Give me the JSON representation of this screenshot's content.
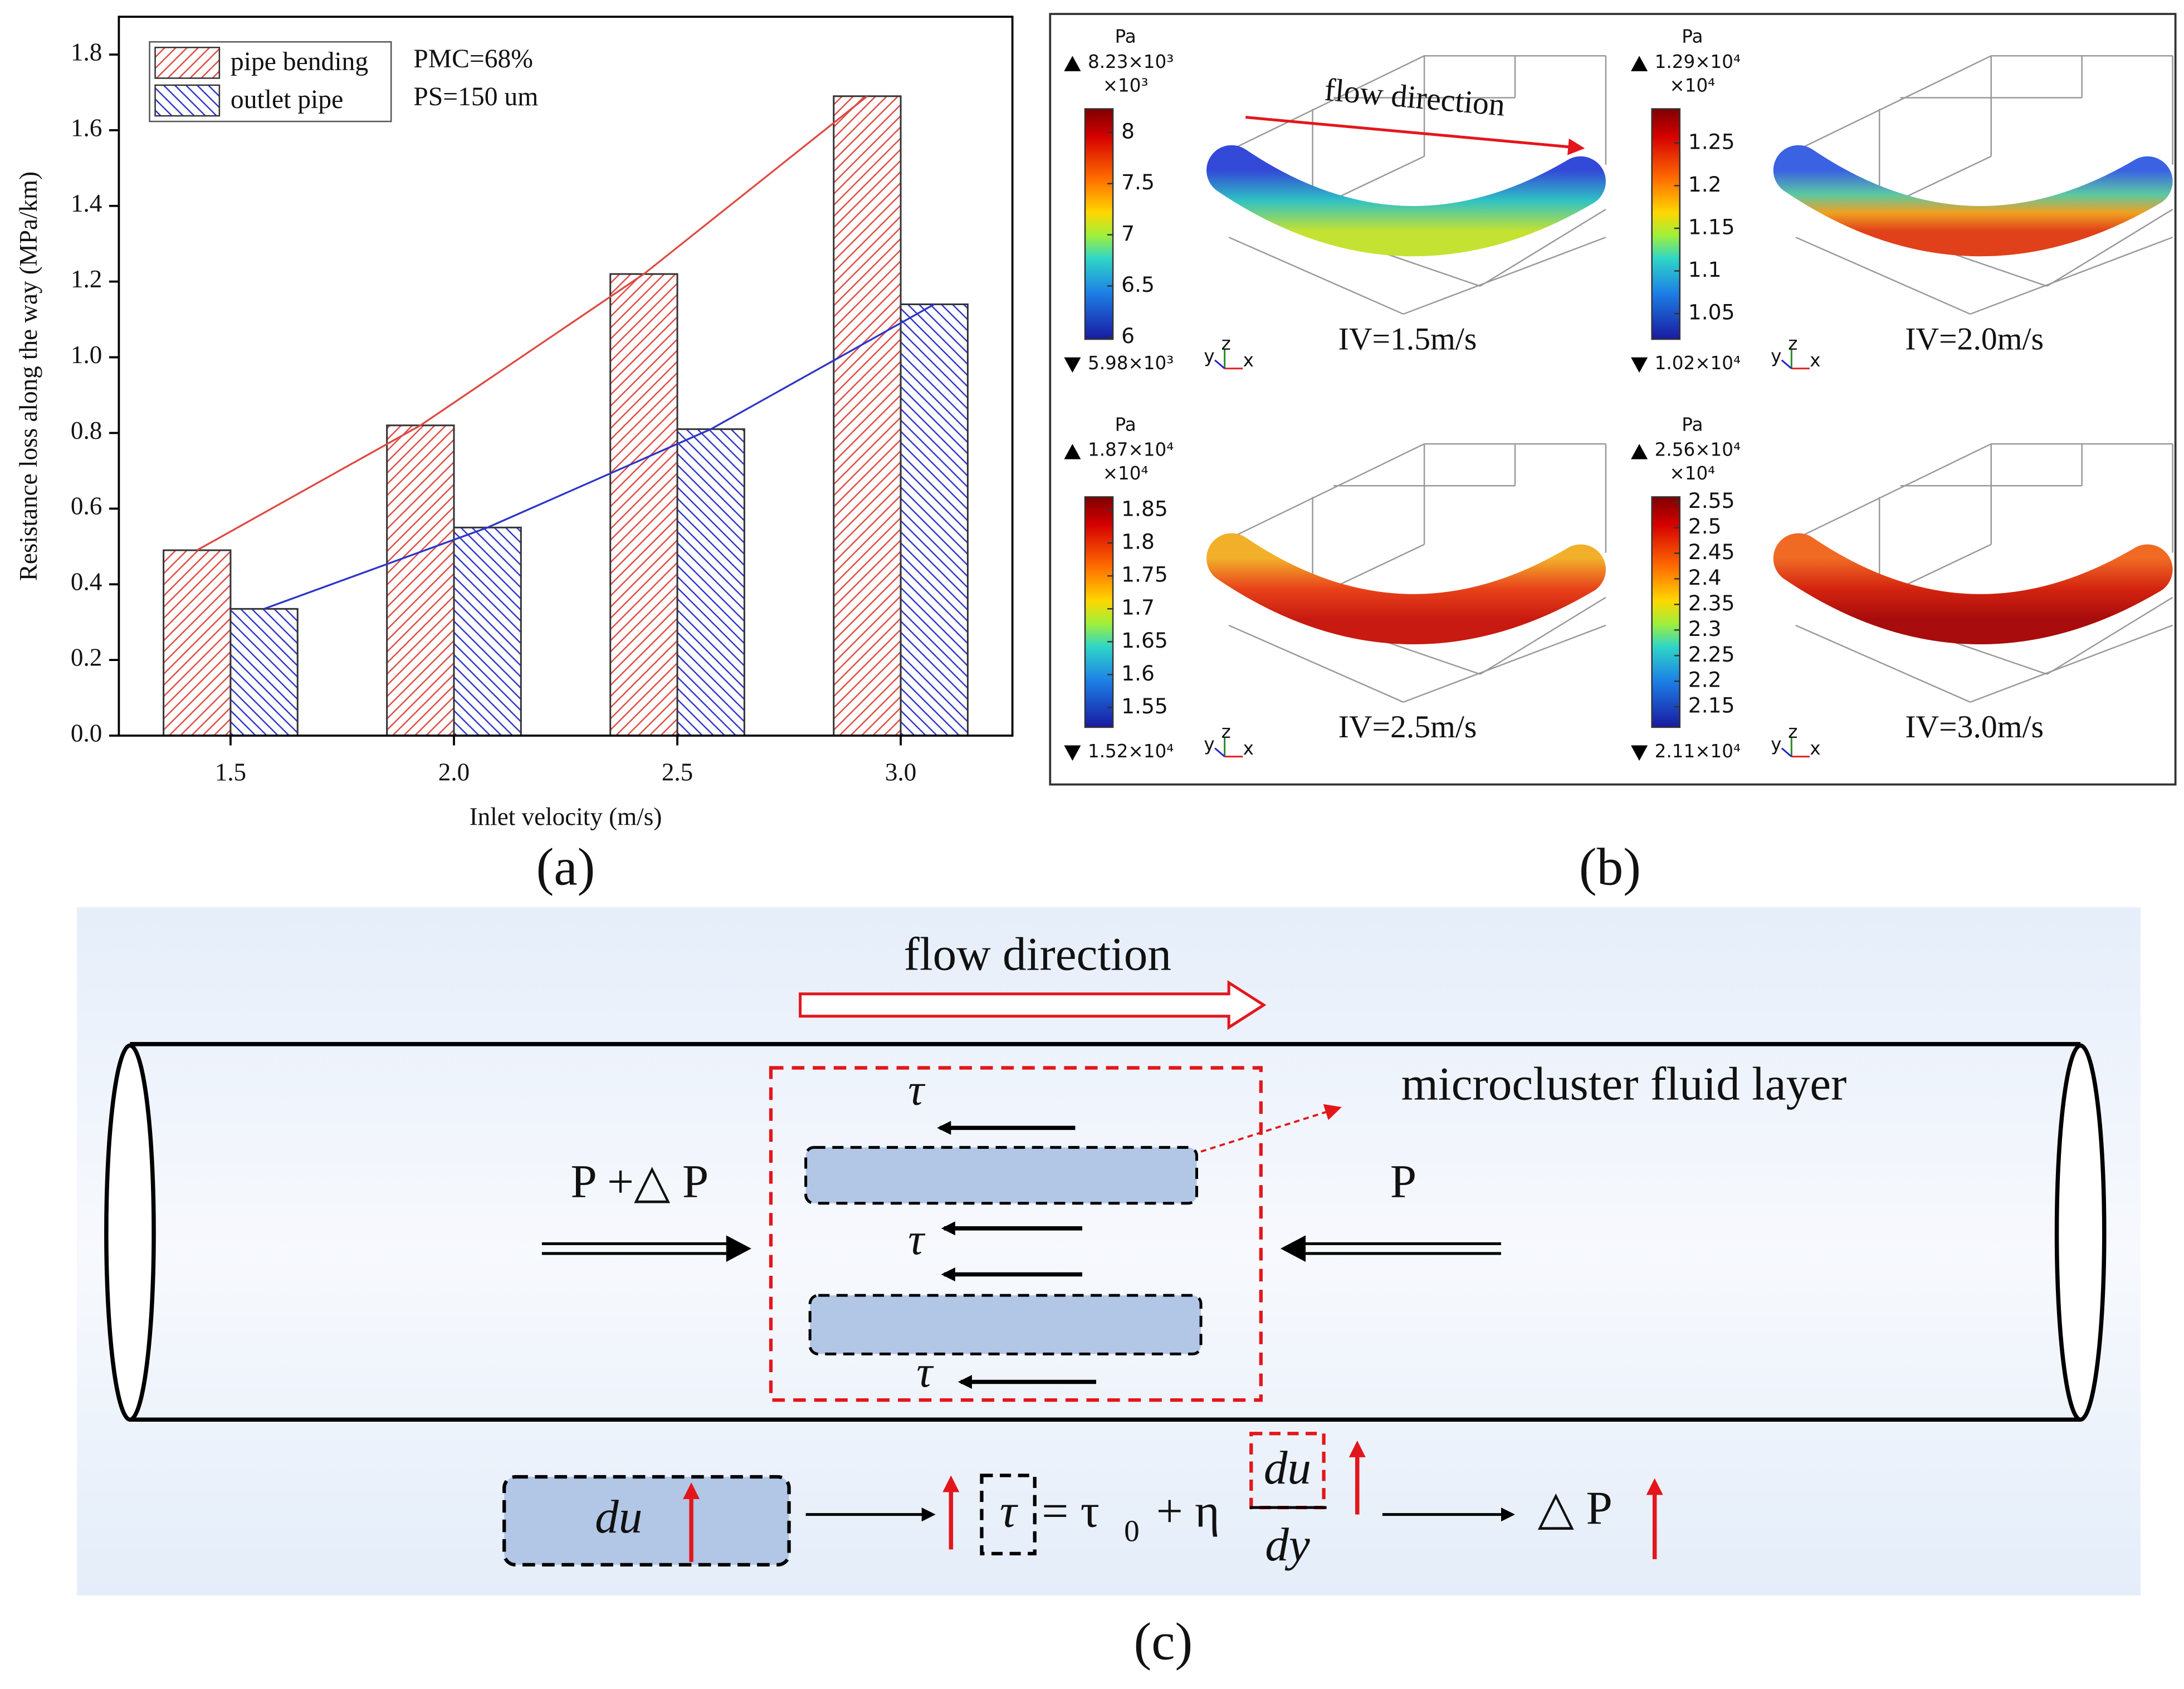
{
  "chart_data": {
    "type": "bar",
    "categories": [
      "1.5",
      "2.0",
      "2.5",
      "3.0"
    ],
    "series": [
      {
        "name": "pipe bending",
        "color": "#dd4a42",
        "values": [
          0.49,
          0.82,
          1.22,
          1.69
        ]
      },
      {
        "name": "outlet pipe",
        "color": "#2d35c8",
        "values": [
          0.335,
          0.55,
          0.81,
          1.14
        ]
      }
    ],
    "xlabel": "Inlet velocity (m/s)",
    "ylabel": "Resistance loss along the way (MPa/km)",
    "ylim": [
      0,
      1.9
    ],
    "yticks": [
      {
        "value": 0,
        "label": "0.0"
      },
      0.2,
      0.4,
      0.6,
      0.8,
      {
        "value": 1,
        "label": "1.0"
      },
      1.2,
      1.4,
      1.6,
      1.8
    ],
    "annotations": [
      "PMC=68%",
      "PS=150 um"
    ],
    "legend": "upper left"
  },
  "panel_b": {
    "flow_label": "flow direction",
    "axes": [
      "y",
      "z",
      "x"
    ],
    "contours": [
      {
        "unit": "Pa",
        "max_label": "8.23×10³",
        "multiplier": "×10³",
        "clim": [
          5.98,
          8.23
        ],
        "ticks": [
          8,
          7.5,
          7,
          6.5,
          6
        ],
        "min_label": "5.98×10³",
        "label": "IV=1.5m/s"
      },
      {
        "unit": "Pa",
        "max_label": "1.29×10⁴",
        "multiplier": "×10⁴",
        "clim": [
          1.02,
          1.29
        ],
        "ticks": [
          1.25,
          1.2,
          1.15,
          1.1,
          1.05
        ],
        "min_label": "1.02×10⁴",
        "label": "IV=2.0m/s"
      },
      {
        "unit": "Pa",
        "max_label": "1.87×10⁴",
        "multiplier": "×10⁴",
        "clim": [
          1.52,
          1.87
        ],
        "ticks": [
          1.85,
          1.8,
          1.75,
          1.7,
          1.65,
          1.6,
          1.55
        ],
        "min_label": "1.52×10⁴",
        "label": "IV=2.5m/s"
      },
      {
        "unit": "Pa",
        "max_label": "2.56×10⁴",
        "multiplier": "×10⁴",
        "clim": [
          2.11,
          2.56
        ],
        "ticks": [
          2.55,
          2.5,
          2.45,
          2.4,
          2.35,
          2.3,
          2.25,
          2.2,
          2.15
        ],
        "min_label": "2.11×10⁴",
        "label": "IV=3.0m/s"
      }
    ]
  },
  "diagram_c": {
    "flow_label": "flow direction",
    "layer_label": "microcluster fluid layer",
    "shear_labels": [
      "τ",
      "τ",
      "τ"
    ],
    "left_pressure": "P +△ P",
    "right_pressure": "P",
    "equation": {
      "cause": "du",
      "lhs": "τ",
      "rhs": "= τ",
      "subscript": "0",
      "rhs_rest": "+ η",
      "numerator": "du",
      "denominator": "dy",
      "result": "△ P"
    }
  },
  "panel_labels": [
    "(a)",
    "(b)",
    "(c)"
  ]
}
